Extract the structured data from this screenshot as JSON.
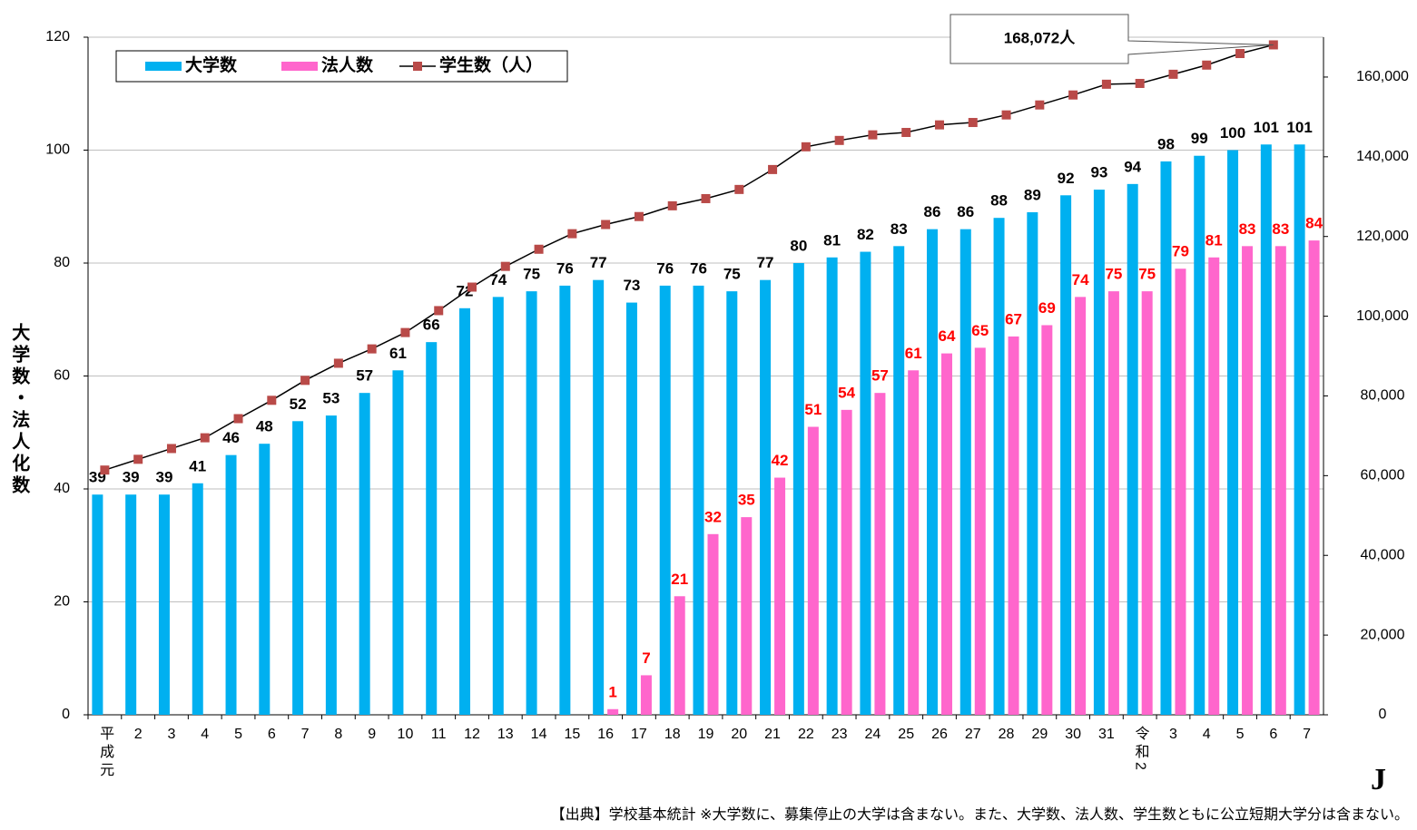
{
  "chart_data": {
    "type": "bar_line",
    "y_label": "大学数・法人化数",
    "categories": [
      "平成元",
      "2",
      "3",
      "4",
      "5",
      "6",
      "7",
      "8",
      "9",
      "10",
      "11",
      "12",
      "13",
      "14",
      "15",
      "16",
      "17",
      "18",
      "19",
      "20",
      "21",
      "22",
      "23",
      "24",
      "25",
      "26",
      "27",
      "28",
      "29",
      "30",
      "31",
      "令和2",
      "3",
      "4",
      "5",
      "6",
      "7"
    ],
    "series": [
      {
        "name": "大学数",
        "color": "#00b0f0",
        "kind": "bar",
        "label_color": "#000000",
        "values": [
          39,
          39,
          39,
          41,
          46,
          48,
          52,
          53,
          57,
          61,
          66,
          72,
          74,
          75,
          76,
          77,
          73,
          76,
          76,
          75,
          77,
          80,
          81,
          82,
          83,
          86,
          86,
          88,
          89,
          92,
          93,
          94,
          98,
          99,
          100,
          101,
          101
        ]
      },
      {
        "name": "法人数",
        "color": "#ff66cc",
        "kind": "bar",
        "label_color": "#ff0000",
        "values": [
          null,
          null,
          null,
          null,
          null,
          null,
          null,
          null,
          null,
          null,
          null,
          null,
          null,
          null,
          null,
          1,
          7,
          21,
          32,
          35,
          42,
          51,
          54,
          57,
          61,
          64,
          65,
          67,
          69,
          74,
          75,
          75,
          79,
          81,
          83,
          83,
          84
        ]
      },
      {
        "name": "学生数（人）",
        "color": "#000000",
        "marker_color": "#b94a48",
        "kind": "line",
        "axis": "y2",
        "values": [
          61400,
          64100,
          66800,
          69500,
          74300,
          78900,
          83900,
          88200,
          91800,
          95900,
          101400,
          107300,
          112500,
          116800,
          120700,
          123000,
          125000,
          127700,
          129500,
          131800,
          136800,
          142500,
          144100,
          145500,
          146100,
          148000,
          148600,
          150500,
          153000,
          155500,
          158200,
          158400,
          160700,
          163000,
          165900,
          168072,
          null
        ]
      }
    ],
    "ylim": [
      0,
      120
    ],
    "yticks": [
      0,
      20,
      40,
      60,
      80,
      100,
      120
    ],
    "y2lim": [
      0,
      170000
    ],
    "y2ticks": [
      0,
      {
        "value": 20000,
        "label": "20,000"
      },
      {
        "value": 40000,
        "label": "40,000"
      },
      {
        "value": 60000,
        "label": "60,000"
      },
      {
        "value": 80000,
        "label": "80,000"
      },
      {
        "value": 100000,
        "label": "100,000"
      },
      {
        "value": 120000,
        "label": "120,000"
      },
      {
        "value": 140000,
        "label": "140,000"
      },
      {
        "value": 160000,
        "label": "160,000"
      }
    ],
    "grid": true,
    "legend": "top-left",
    "annotation": "168,072人",
    "footnote": "【出典】学校基本統計 ※大学数に、募集停止の大学は含まない。また、大学数、法人数、学生数ともに公立短期大学分は含まない。"
  }
}
